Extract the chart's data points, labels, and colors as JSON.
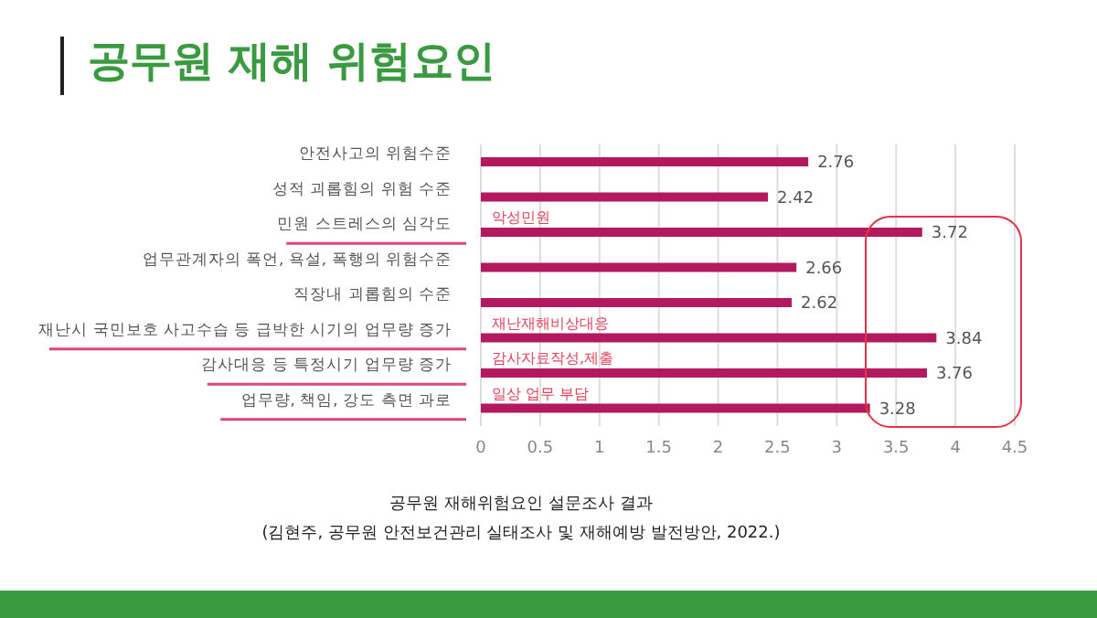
{
  "chart_data": {
    "type": "bar",
    "orientation": "horizontal",
    "title": "공무원 재해 위험요인",
    "categories": [
      "안전사고의 위험수준",
      "성적 괴롭힘의 위험 수준",
      "민원 스트레스의 심각도",
      "업무관계자의 폭언, 욕설, 폭행의 위험수준",
      "직장내 괴롭힘의 수준",
      "재난시 국민보호 사고수습 등 급박한 시기의 업무량 증가",
      "감사대응 등 특정시기 업무량 증가",
      "업무량, 책임, 강도 측면 과로"
    ],
    "values": [
      2.76,
      2.42,
      3.72,
      2.66,
      2.62,
      3.84,
      3.76,
      3.28
    ],
    "color": "#b3195f",
    "data_labels": true,
    "xlim": [
      0,
      4.5
    ],
    "xticks": [
      0,
      0.5,
      1,
      1.5,
      2,
      2.5,
      3,
      3.5,
      4,
      4.5
    ],
    "grid": "x",
    "annotations": [
      {
        "text": "악성민원",
        "y": "민원 스트레스의 심각도"
      },
      {
        "text": "재난재해비상대응",
        "y": "재난시 국민보호 사고수습 등 급박한 시기의 업무량 증가"
      },
      {
        "text": "감사자료작성,제출",
        "y": "감사대응 등 특정시기 업무량 증가"
      },
      {
        "text": "일상 업무 부담",
        "y": "업무량, 책임, 강도 측면 과로"
      },
      "공무원 재해위험요인 설문조사 결과",
      "(김현주, 공무원 안전보건관리 실태조사 및 재해예방 발전방안, 2022.)"
    ]
  }
}
